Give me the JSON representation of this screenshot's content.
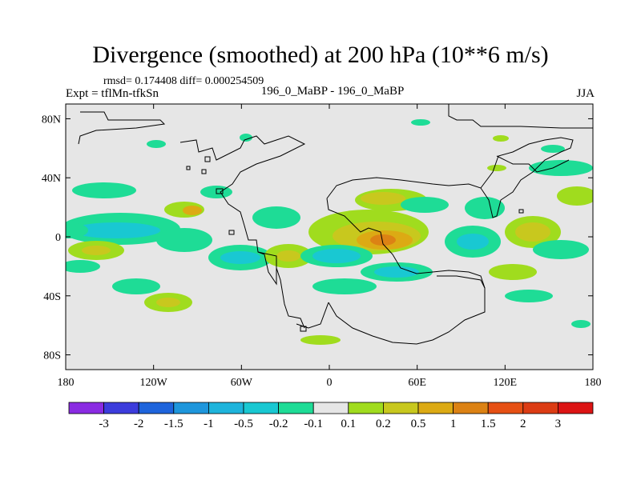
{
  "chart_data": {
    "type": "contour-map",
    "title": "Divergence (smoothed) at 200 hPa (10**6 m/s)",
    "stats": "rmsd= 0.174408 diff= 0.000254509",
    "experiment": "Expt = tflMn-tfkSn",
    "center_label": "196_0_MaBP - 196_0_MaBP",
    "season": "JJA",
    "x_ticks": [
      "180",
      "120W",
      "60W",
      "0",
      "60E",
      "120E",
      "180"
    ],
    "x_values": [
      -180,
      -120,
      -60,
      0,
      60,
      120,
      180
    ],
    "y_ticks": [
      "80N",
      "40N",
      "0",
      "40S",
      "80S"
    ],
    "y_values": [
      80,
      40,
      0,
      -40,
      -80
    ],
    "xlim": [
      -180,
      180
    ],
    "ylim": [
      -90,
      90
    ],
    "colorbar": {
      "labels": [
        "-3",
        "-2",
        "-1.5",
        "-1",
        "-0.5",
        "-0.2",
        "-0.1",
        "0.1",
        "0.2",
        "0.5",
        "1",
        "1.5",
        "2",
        "3"
      ],
      "colors": [
        "#8a2be2",
        "#3c3cdc",
        "#1e64dc",
        "#1e96dc",
        "#1eb4dc",
        "#19c8d2",
        "#1edc96",
        "#e6e6e6",
        "#a0dc1e",
        "#c8c81e",
        "#dcaa14",
        "#dc8214",
        "#e65014",
        "#dc3c14",
        "#dc1414"
      ]
    },
    "features": [
      {
        "name": "eq-pacific-negative-band",
        "level": "-0.2",
        "lon_min": -180,
        "lon_max": -120,
        "lat_min": -6,
        "lat_max": 8
      },
      {
        "name": "africa-indian-positive",
        "level": "1",
        "lon_min": 20,
        "lon_max": 60,
        "lat_min": -15,
        "lat_max": 12
      },
      {
        "name": "south-atlantic-negative",
        "level": "-0.5",
        "lon_min": 0,
        "lon_max": 40,
        "lat_min": -28,
        "lat_max": -10
      }
    ]
  }
}
